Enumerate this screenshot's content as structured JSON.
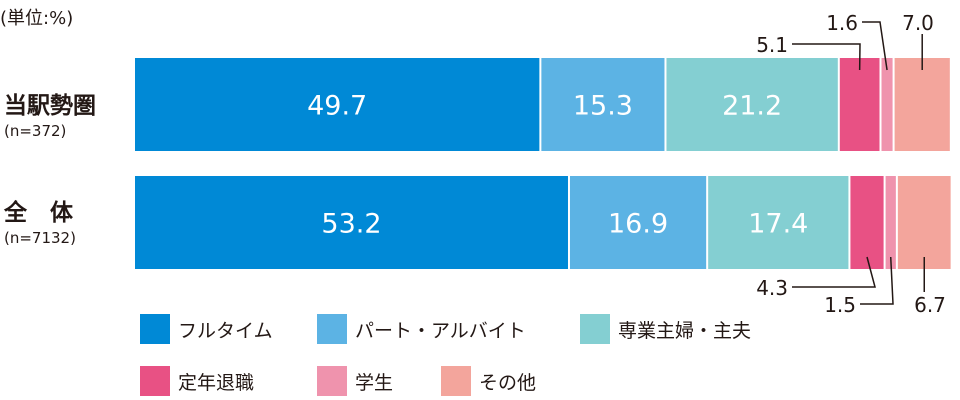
{
  "chart_data": {
    "type": "bar",
    "orientation": "horizontal",
    "stacked": true,
    "unit_label": "(単位:%)",
    "categories": [
      {
        "name": "当駅勢圏",
        "n_label": "(n=372)"
      },
      {
        "name": "全　体",
        "n_label": "(n=7132)"
      }
    ],
    "series": [
      {
        "name": "フルタイム",
        "color": "#0089d6",
        "values": [
          49.7,
          53.2
        ]
      },
      {
        "name": "パート・アルバイト",
        "color": "#5cb3e4",
        "values": [
          15.3,
          16.9
        ]
      },
      {
        "name": "専業主婦・主夫",
        "color": "#84cfd2",
        "values": [
          21.2,
          17.4
        ]
      },
      {
        "name": "定年退職",
        "color": "#e85184",
        "values": [
          5.1,
          4.3
        ]
      },
      {
        "name": "学生",
        "color": "#ef93ad",
        "values": [
          1.6,
          1.5
        ]
      },
      {
        "name": "その他",
        "color": "#f3a59c",
        "values": [
          7.0,
          6.7
        ]
      }
    ],
    "xlim": [
      0,
      100.9
    ],
    "grid": false,
    "legend_position": "bottom",
    "data_label_color": "#ffffff",
    "leader_color": "#231815"
  }
}
